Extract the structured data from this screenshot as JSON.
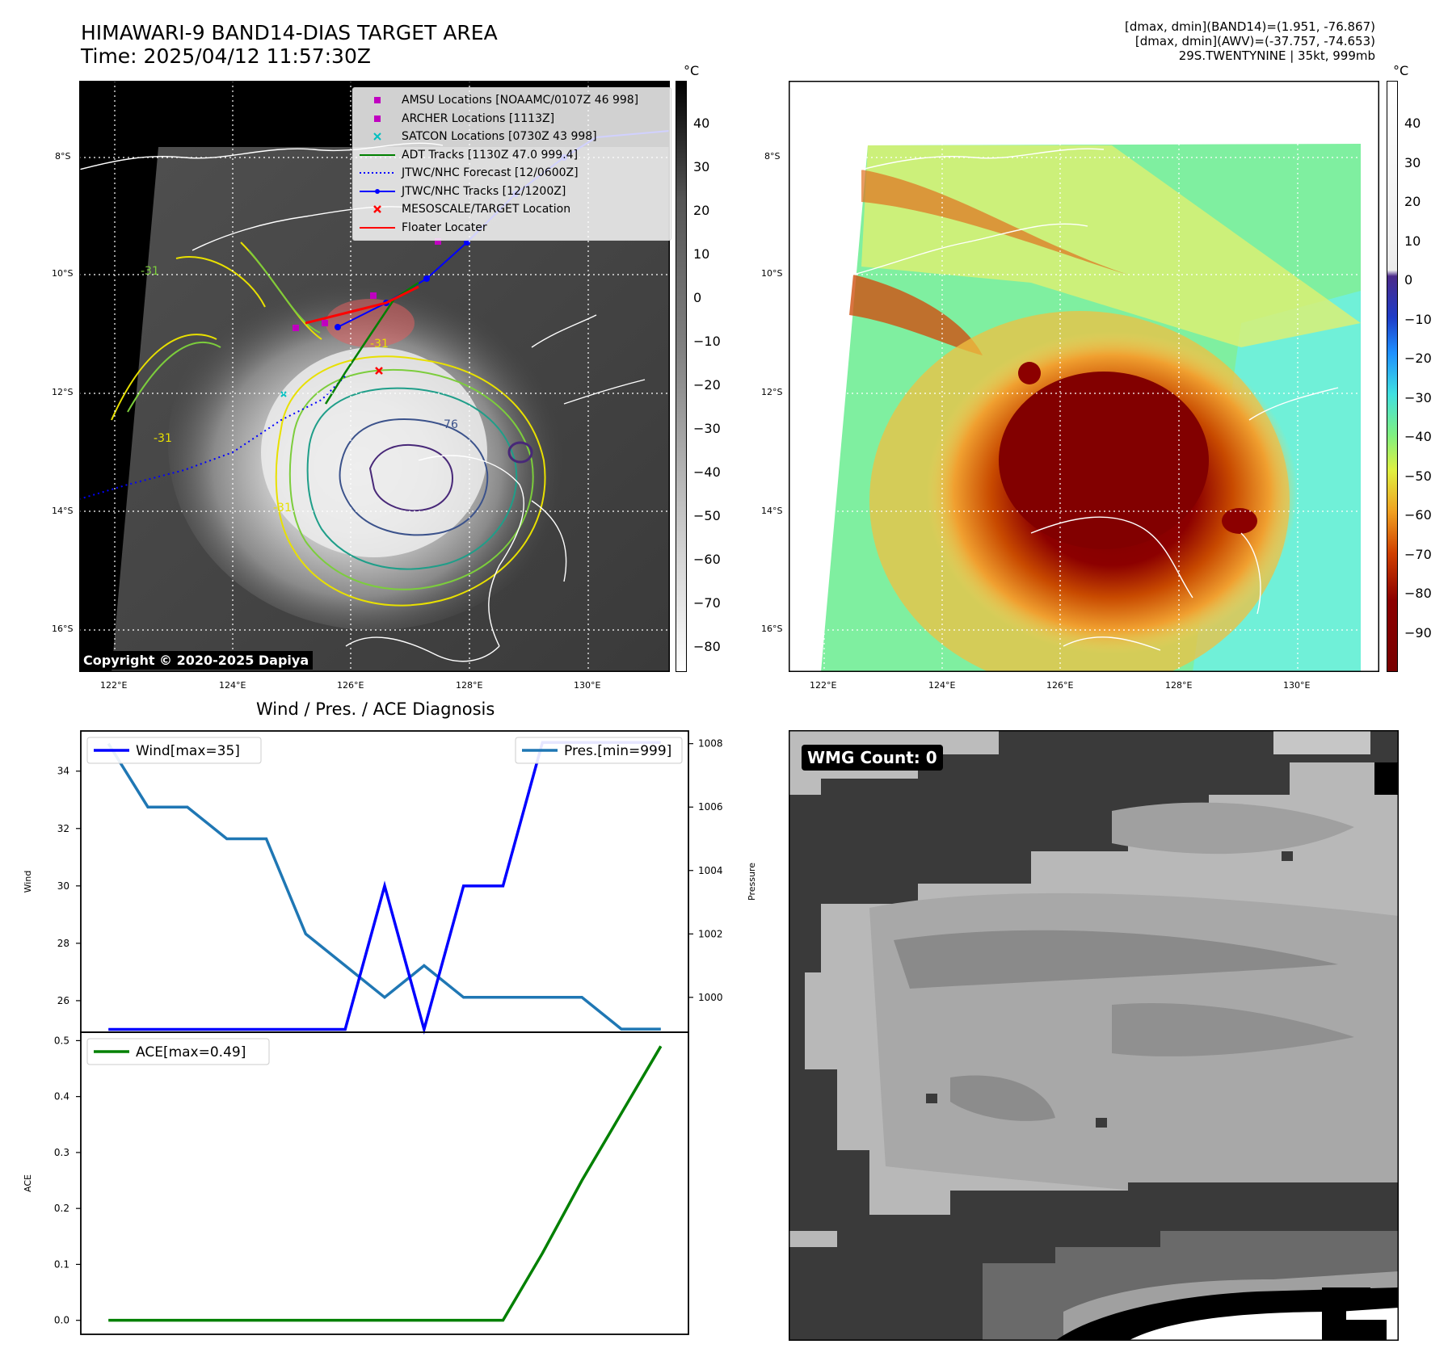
{
  "title": {
    "line1": "HIMAWARI-9 BAND14-DIAS TARGET AREA",
    "line2": "Time: 2025/04/12 11:57:30Z"
  },
  "info": {
    "line1": "[dmax, dmin](BAND14)=(1.951, -76.867)",
    "line2": "[dmax, dmin](AWV)=(-37.757, -74.653)",
    "line3": "29S.TWENTYNINE | 35kt, 999mb"
  },
  "map": {
    "lat_labels": [
      "8°S",
      "10°S",
      "12°S",
      "14°S",
      "16°S"
    ],
    "lon_labels": [
      "122°E",
      "124°E",
      "126°E",
      "128°E",
      "130°E"
    ],
    "lon_range": [
      121.4,
      131.4
    ],
    "lat_range": [
      -16.6,
      -6.6
    ],
    "copyright": "Copyright © 2020-2025 Dapiya",
    "contour_labels": [
      "-31",
      "-31",
      "-31",
      "-31",
      "-76"
    ],
    "legend": [
      {
        "label": "AMSU Locations [NOAAMC/0107Z 46 998]",
        "marker": "square",
        "color": "#c000c0"
      },
      {
        "label": "ARCHER Locations [1113Z]",
        "marker": "square",
        "color": "#c000c0"
      },
      {
        "label": "SATCON Locations [0730Z 43 998]",
        "marker": "x",
        "color": "#00c0c0"
      },
      {
        "label": "ADT Tracks [1130Z 47.0 999.4]",
        "marker": "line",
        "color": "#008000"
      },
      {
        "label": "JTWC/NHC Forecast [12/0600Z]",
        "marker": "dotted",
        "color": "#0000ff"
      },
      {
        "label": "JTWC/NHC Tracks [12/1200Z]",
        "marker": "line-dot",
        "color": "#0000ff"
      },
      {
        "label": "MESOSCALE/TARGET Location",
        "marker": "x",
        "color": "#ff0000"
      },
      {
        "label": "Floater Locater",
        "marker": "line",
        "color": "#ff0000"
      }
    ]
  },
  "colorbar1": {
    "unit": "°C",
    "ticks": [
      "40",
      "30",
      "20",
      "10",
      "0",
      "−10",
      "−20",
      "−30",
      "−40",
      "−50",
      "−60",
      "−70",
      "−80"
    ]
  },
  "colorbar2": {
    "unit": "°C",
    "ticks": [
      "40",
      "30",
      "20",
      "10",
      "0",
      "−10",
      "−20",
      "−30",
      "−40",
      "−50",
      "−60",
      "−70",
      "−80",
      "−90"
    ]
  },
  "diag_title": "Wind / Pres. / ACE Diagnosis",
  "wmg": {
    "label": "WMG Count: 0"
  },
  "chart_data": [
    {
      "type": "line",
      "xlabel": "",
      "ylabel": "Wind",
      "ylim": [
        24.9,
        35.4
      ],
      "yticks": [
        "26",
        "28",
        "30",
        "32",
        "34"
      ],
      "legend_position": "top-left",
      "series": [
        {
          "name": "Wind[max=35]",
          "color": "#0000ff",
          "x": [
            0,
            1,
            2,
            3,
            4,
            5,
            6,
            7,
            8,
            9,
            10,
            11,
            12,
            13,
            14
          ],
          "values": [
            25,
            25,
            25,
            25,
            25,
            25,
            25,
            30,
            25,
            30,
            30,
            35,
            35,
            35,
            35
          ]
        }
      ],
      "secondary_axis": {
        "ylabel": "Pressure",
        "ylim": [
          998.9,
          1008.4
        ],
        "yticks": [
          "1000",
          "1002",
          "1004",
          "1006",
          "1008"
        ],
        "legend_position": "top-right",
        "series": [
          {
            "name": "Pres.[min=999]",
            "color": "#1f77b4",
            "x": [
              0,
              1,
              2,
              3,
              4,
              5,
              6,
              7,
              8,
              9,
              10,
              11,
              12,
              13,
              14
            ],
            "values": [
              1008,
              1006,
              1006,
              1005,
              1005,
              1002,
              1001,
              1000,
              1001,
              1000,
              1000,
              1000,
              1000,
              999,
              999
            ]
          }
        ]
      }
    },
    {
      "type": "line",
      "xlabel": "",
      "ylabel": "ACE",
      "ylim": [
        -0.025,
        0.515
      ],
      "yticks": [
        "0.0",
        "0.1",
        "0.2",
        "0.3",
        "0.4",
        "0.5"
      ],
      "legend_position": "top-left",
      "series": [
        {
          "name": "ACE[max=0.49]",
          "color": "#008000",
          "x": [
            0,
            1,
            2,
            3,
            4,
            5,
            6,
            7,
            8,
            9,
            10,
            11,
            12,
            13,
            14
          ],
          "values": [
            0,
            0,
            0,
            0,
            0,
            0,
            0,
            0,
            0,
            0,
            0,
            0.12,
            0.25,
            0.37,
            0.49
          ]
        }
      ]
    }
  ]
}
